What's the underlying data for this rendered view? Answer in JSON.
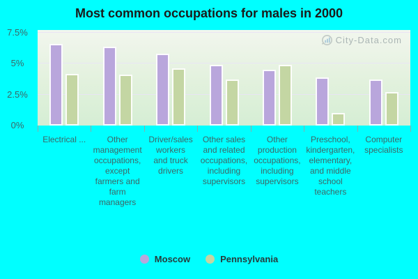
{
  "chart_data": {
    "type": "bar",
    "title": "Most common occupations for males in 2000",
    "categories": [
      "Electrical ...",
      "Other management occupations, except farmers and farm managers",
      "Driver/sales workers and truck drivers",
      "Other sales and related occupations, including supervisors",
      "Other production occupations, including supervisors",
      "Preschool, kindergarten, elementary, and middle school teachers",
      "Computer specialists"
    ],
    "category_lines": [
      [
        "Electrical ..."
      ],
      [
        "Other",
        "management",
        "occupations,",
        "except",
        "farmers and",
        "farm",
        "managers"
      ],
      [
        "Driver/sales",
        "workers",
        "and truck",
        "drivers"
      ],
      [
        "Other sales",
        "and related",
        "occupations,",
        "including",
        "supervisors"
      ],
      [
        "Other",
        "production",
        "occupations,",
        "including",
        "supervisors"
      ],
      [
        "Preschool,",
        "kindergarten,",
        "elementary,",
        "and middle",
        "school",
        "teachers"
      ],
      [
        "Computer",
        "specialists"
      ]
    ],
    "series": [
      {
        "name": "Moscow",
        "color": "#b9a6dc",
        "values": [
          6.6,
          6.4,
          5.8,
          4.9,
          4.5,
          3.9,
          3.7
        ]
      },
      {
        "name": "Pennsylvania",
        "color": "#c4d6a3",
        "values": [
          4.2,
          4.1,
          4.6,
          3.7,
          4.9,
          1.0,
          2.7
        ]
      }
    ],
    "ylim": [
      0,
      7.5
    ],
    "yticks": [
      {
        "label": "0%",
        "value": 0
      },
      {
        "label": "2.5%",
        "value": 2.5
      },
      {
        "label": "5%",
        "value": 5
      },
      {
        "label": "7.5%",
        "value": 7.5
      }
    ],
    "grid": true,
    "legend_position": "bottom"
  },
  "watermark": {
    "text": "City-Data.com"
  },
  "colors": {
    "background": "#00ffff",
    "plot_top": "#f2f6ee",
    "plot_bottom": "#d5eed4",
    "axis_text": "#3d6666",
    "title_text": "#1a1a1a"
  }
}
